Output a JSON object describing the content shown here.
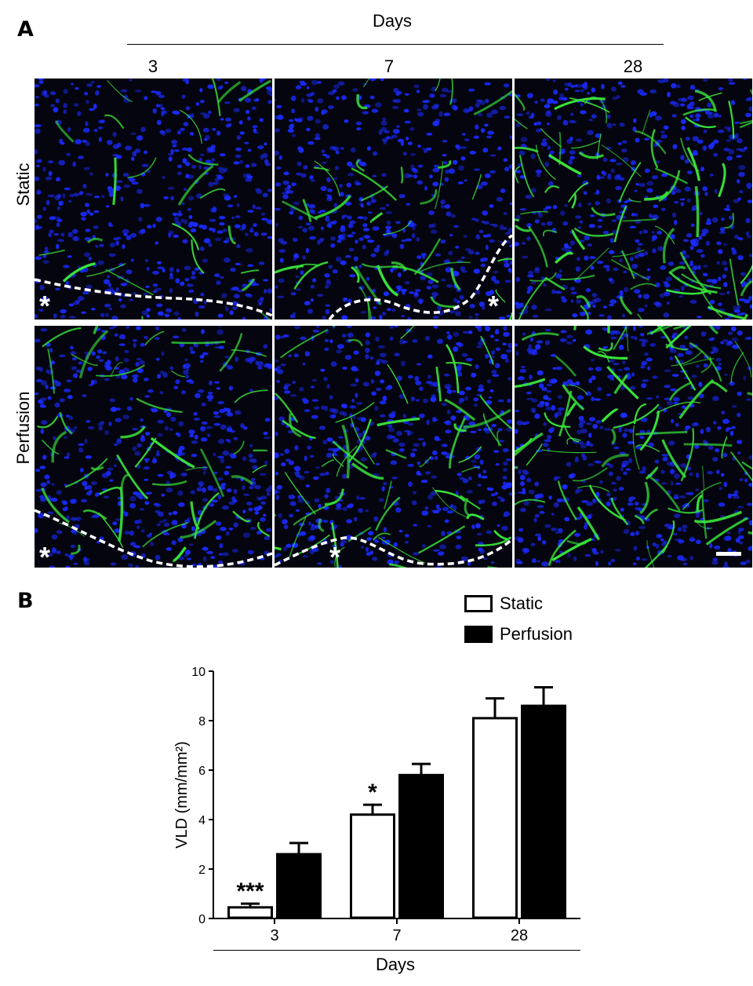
{
  "panel_a": {
    "letter": "A",
    "days_header": "Days",
    "columns": [
      "3",
      "7",
      "28"
    ],
    "rows": [
      "Static",
      "Perfusion"
    ],
    "asterisk": "*",
    "colors": {
      "nuclei": "#1a2bff",
      "vessels": "#39e43a",
      "background": "#050510",
      "boundary": "#ffffff"
    }
  },
  "panel_b": {
    "letter": "B",
    "legend": [
      {
        "label": "Static",
        "fill": "#ffffff"
      },
      {
        "label": "Perfusion",
        "fill": "#000000"
      }
    ],
    "significance": [
      "***",
      "*",
      ""
    ]
  },
  "chart_data": {
    "type": "bar",
    "categories": [
      "3",
      "7",
      "28"
    ],
    "xlabel": "Days",
    "ylabel": "VLD (mm/mm²)",
    "ylim": [
      0,
      10
    ],
    "yticks": [
      0,
      2,
      4,
      6,
      8,
      10
    ],
    "series": [
      {
        "name": "Static",
        "values": [
          0.45,
          4.2,
          8.1
        ],
        "errors": [
          0.15,
          0.4,
          0.8
        ]
      },
      {
        "name": "Perfusion",
        "values": [
          2.6,
          5.8,
          8.6
        ],
        "errors": [
          0.45,
          0.45,
          0.75
        ]
      }
    ]
  }
}
